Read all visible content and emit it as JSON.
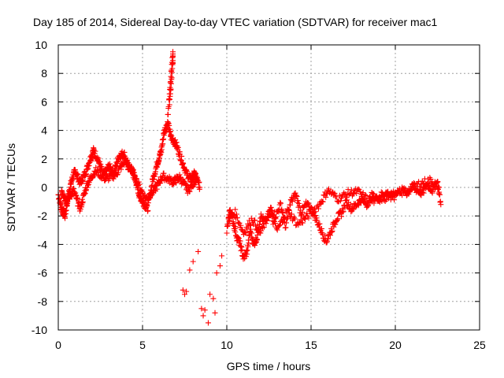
{
  "chart_data": {
    "type": "scatter",
    "title": "Day 185 of 2014, Sidereal Day-to-day VTEC variation (SDTVAR) for receiver mac1",
    "xlabel": "GPS time / hours",
    "ylabel": "SDTVAR / TECUs",
    "xlim": [
      0,
      25
    ],
    "ylim": [
      -10,
      10
    ],
    "xticks": [
      0,
      5,
      10,
      15,
      20,
      25
    ],
    "yticks": [
      -10,
      -8,
      -6,
      -4,
      -2,
      0,
      2,
      4,
      6,
      8,
      10
    ],
    "grid": true,
    "marker": "+",
    "series": [
      {
        "name": "SDTVAR",
        "color": "#ff0000",
        "trace": [
          [
            0.0,
            -0.5
          ],
          [
            0.2,
            -1.5
          ],
          [
            0.4,
            -2.0
          ],
          [
            0.6,
            -0.5
          ],
          [
            0.8,
            0.5
          ],
          [
            1.0,
            1.2
          ],
          [
            1.3,
            0.3
          ],
          [
            1.6,
            1.0
          ],
          [
            1.9,
            2.0
          ],
          [
            2.1,
            2.6
          ],
          [
            2.4,
            1.8
          ],
          [
            2.7,
            0.8
          ],
          [
            3.0,
            1.5
          ],
          [
            3.3,
            1.0
          ],
          [
            3.6,
            2.2
          ],
          [
            3.9,
            2.4
          ],
          [
            4.1,
            1.5
          ],
          [
            4.4,
            1.2
          ],
          [
            4.6,
            0.5
          ],
          [
            4.8,
            -0.5
          ],
          [
            5.0,
            -1.0
          ],
          [
            5.3,
            -1.5
          ],
          [
            5.6,
            0.5
          ],
          [
            5.9,
            1.8
          ],
          [
            6.1,
            2.5
          ],
          [
            6.3,
            4.0
          ],
          [
            6.5,
            4.5
          ],
          [
            6.7,
            3.5
          ],
          [
            7.0,
            3.0
          ],
          [
            7.3,
            2.0
          ],
          [
            7.6,
            1.0
          ],
          [
            7.9,
            0.5
          ],
          [
            8.1,
            1.0
          ],
          [
            8.4,
            0.0
          ]
        ],
        "trace_b": [
          [
            0.2,
            -0.2
          ],
          [
            0.5,
            -1.0
          ],
          [
            0.9,
            -0.2
          ],
          [
            1.3,
            -1.5
          ],
          [
            1.7,
            0.2
          ],
          [
            2.2,
            1.2
          ],
          [
            2.8,
            0.6
          ],
          [
            3.4,
            0.9
          ],
          [
            4.0,
            1.9
          ],
          [
            4.5,
            0.8
          ],
          [
            5.2,
            -0.8
          ],
          [
            5.7,
            -0.2
          ],
          [
            6.2,
            0.8
          ],
          [
            6.8,
            0.4
          ],
          [
            7.2,
            0.7
          ],
          [
            7.7,
            -0.2
          ],
          [
            8.2,
            0.6
          ]
        ],
        "spike": [
          [
            6.5,
            5.0
          ],
          [
            6.6,
            6.5
          ],
          [
            6.7,
            8.0
          ],
          [
            6.8,
            9.5
          ],
          [
            6.8,
            8.8
          ],
          [
            6.7,
            7.2
          ],
          [
            6.6,
            5.8
          ]
        ],
        "scatter": [
          [
            7.4,
            -7.2
          ],
          [
            7.5,
            -7.5
          ],
          [
            7.6,
            -7.3
          ],
          [
            7.8,
            -5.8
          ],
          [
            8.0,
            -5.2
          ],
          [
            8.3,
            -4.5
          ],
          [
            8.5,
            -8.5
          ],
          [
            8.6,
            -9.0
          ],
          [
            8.7,
            -8.6
          ],
          [
            9.0,
            -7.5
          ],
          [
            9.2,
            -7.8
          ],
          [
            9.3,
            -8.8
          ],
          [
            9.4,
            -6.0
          ],
          [
            9.6,
            -5.5
          ],
          [
            9.7,
            -4.8
          ],
          [
            8.9,
            -9.5
          ]
        ],
        "trace2": [
          [
            10.0,
            -3.0
          ],
          [
            10.2,
            -1.5
          ],
          [
            10.4,
            -2.5
          ],
          [
            10.6,
            -3.5
          ],
          [
            10.8,
            -4.0
          ],
          [
            11.0,
            -5.0
          ],
          [
            11.2,
            -4.5
          ],
          [
            11.4,
            -3.0
          ],
          [
            11.6,
            -4.0
          ],
          [
            11.8,
            -3.5
          ],
          [
            12.0,
            -2.0
          ],
          [
            12.3,
            -2.5
          ],
          [
            12.6,
            -1.5
          ],
          [
            12.9,
            -2.0
          ],
          [
            13.2,
            -1.2
          ],
          [
            13.5,
            -2.8
          ],
          [
            13.8,
            -1.0
          ],
          [
            14.1,
            -0.5
          ],
          [
            14.4,
            -1.8
          ],
          [
            14.7,
            -1.2
          ],
          [
            15.0,
            -1.5
          ],
          [
            15.3,
            -2.2
          ],
          [
            15.6,
            -3.0
          ],
          [
            15.9,
            -3.8
          ],
          [
            16.2,
            -3.0
          ],
          [
            16.5,
            -2.2
          ],
          [
            16.8,
            -1.8
          ],
          [
            17.1,
            -1.0
          ],
          [
            17.4,
            -1.5
          ],
          [
            17.7,
            -1.2
          ],
          [
            18.0,
            -0.8
          ],
          [
            18.3,
            -1.2
          ],
          [
            18.6,
            -0.6
          ],
          [
            18.9,
            -0.8
          ],
          [
            19.2,
            -0.5
          ],
          [
            19.5,
            -0.4
          ],
          [
            19.8,
            -0.6
          ],
          [
            20.1,
            -0.3
          ],
          [
            20.4,
            -0.2
          ],
          [
            20.7,
            -0.4
          ],
          [
            21.0,
            0.0
          ],
          [
            21.3,
            -0.2
          ],
          [
            21.6,
            -0.4
          ],
          [
            21.9,
            0.2
          ],
          [
            22.2,
            -0.2
          ],
          [
            22.5,
            0.4
          ],
          [
            22.7,
            -1.2
          ]
        ],
        "trace2_b": [
          [
            10.1,
            -2.2
          ],
          [
            10.5,
            -1.8
          ],
          [
            11.0,
            -3.2
          ],
          [
            11.5,
            -2.2
          ],
          [
            12.0,
            -3.2
          ],
          [
            12.5,
            -1.8
          ],
          [
            13.0,
            -3.0
          ],
          [
            13.6,
            -1.6
          ],
          [
            14.2,
            -2.6
          ],
          [
            14.8,
            -2.0
          ],
          [
            15.5,
            -1.2
          ],
          [
            16.0,
            -0.2
          ],
          [
            16.6,
            -0.8
          ],
          [
            17.2,
            -0.4
          ],
          [
            17.8,
            -0.3
          ],
          [
            18.5,
            -1.0
          ],
          [
            19.2,
            -0.8
          ],
          [
            20.0,
            -0.6
          ],
          [
            20.8,
            -0.1
          ],
          [
            21.5,
            0.3
          ],
          [
            22.1,
            0.5
          ],
          [
            22.6,
            0.0
          ]
        ]
      }
    ]
  }
}
